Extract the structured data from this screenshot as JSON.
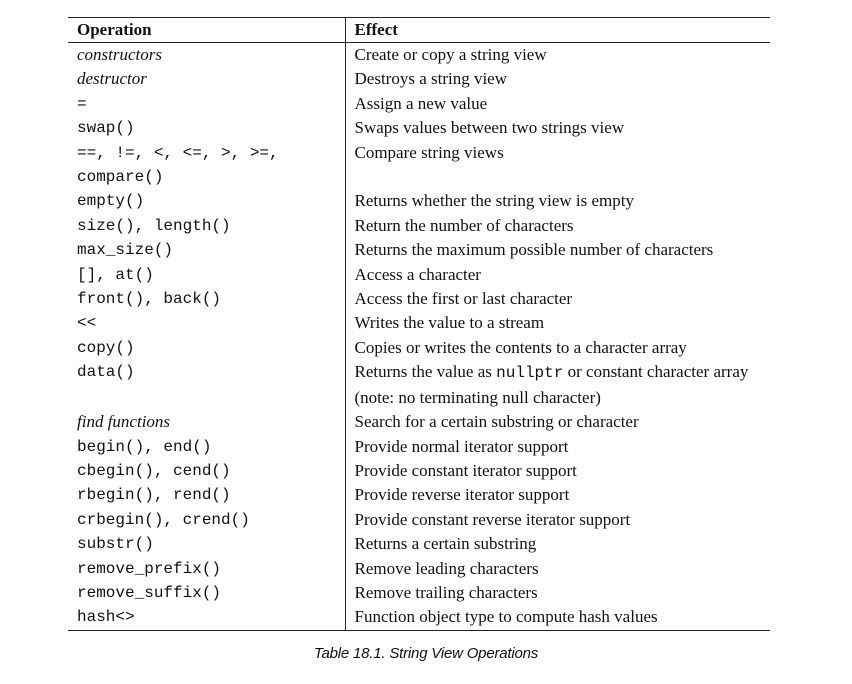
{
  "table": {
    "headers": [
      "Operation",
      "Effect"
    ],
    "rows": [
      {
        "op": "constructors",
        "op_style": "italic",
        "effect": "Create or copy a string view"
      },
      {
        "op": "destructor",
        "op_style": "italic",
        "effect": "Destroys a string view"
      },
      {
        "op": "=",
        "op_style": "mono",
        "effect": "Assign a new value"
      },
      {
        "op": "swap()",
        "op_style": "mono",
        "effect": "Swaps values between two strings view"
      },
      {
        "op": "==, !=, <, <=, >, >=, compare()",
        "op_style": "mono",
        "effect": "Compare string views"
      },
      {
        "op": "empty()",
        "op_style": "mono",
        "effect": "Returns whether the string view is empty"
      },
      {
        "op": "size(), length()",
        "op_style": "mono",
        "effect": "Return the number of characters"
      },
      {
        "op": "max_size()",
        "op_style": "mono",
        "effect": "Returns the maximum possible number of characters"
      },
      {
        "op": "[], at()",
        "op_style": "mono",
        "effect": "Access a character"
      },
      {
        "op": "front(), back()",
        "op_style": "mono",
        "effect": "Access the first or last character"
      },
      {
        "op": "<<",
        "op_style": "mono",
        "effect": "Writes the value to a stream"
      },
      {
        "op": "copy()",
        "op_style": "mono",
        "effect": "Copies or writes the contents to a character array"
      },
      {
        "op": "data()",
        "op_style": "mono",
        "effect_parts": [
          "Returns the value as ",
          "nullptr",
          " or constant character array (note: no terminating null character)"
        ]
      },
      {
        "op": "find functions",
        "op_style": "italic",
        "effect": "Search for a certain substring or character"
      },
      {
        "op": "begin(), end()",
        "op_style": "mono",
        "effect": "Provide normal iterator support"
      },
      {
        "op": "cbegin(), cend()",
        "op_style": "mono",
        "effect": "Provide constant iterator support"
      },
      {
        "op": "rbegin(), rend()",
        "op_style": "mono",
        "effect": "Provide reverse iterator support"
      },
      {
        "op": "crbegin(), crend()",
        "op_style": "mono",
        "effect": "Provide constant reverse iterator support"
      },
      {
        "op": "substr()",
        "op_style": "mono",
        "effect": "Returns a certain substring"
      },
      {
        "op": "remove_prefix()",
        "op_style": "mono",
        "effect": "Remove leading characters"
      },
      {
        "op": "remove_suffix()",
        "op_style": "mono",
        "effect": "Remove trailing characters"
      },
      {
        "op": "hash<>",
        "op_style": "mono",
        "effect": "Function object type to compute hash values"
      }
    ]
  },
  "caption": "Table 18.1. String View Operations"
}
